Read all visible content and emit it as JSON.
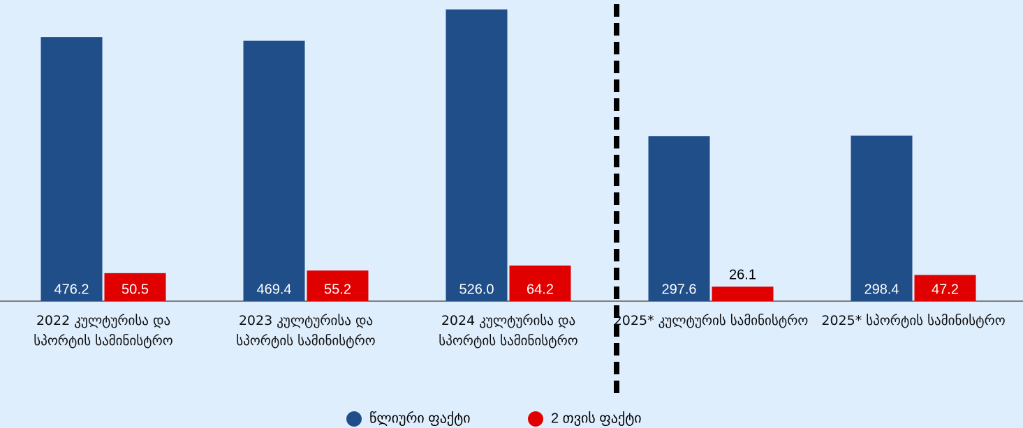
{
  "chart_data": {
    "type": "bar",
    "categories": [
      "2022 კულტურისა და სპორტის სამინისტრო",
      "2023 კულტურისა და სპორტის სამინისტრო",
      "2024 კულტურისა და სპორტის სამინისტრო",
      "2025* კულტურის სამინისტრო",
      "2025* სპორტის სამინისტრო"
    ],
    "series": [
      {
        "name": "წლიური ფაქტი",
        "color": "#1f4e89",
        "values": [
          476.2,
          469.4,
          526.0,
          297.6,
          298.4
        ],
        "value_labels": [
          "476.2",
          "469.4",
          "526.0",
          "297.6",
          "298.4"
        ]
      },
      {
        "name": "2 თვის ფაქტი",
        "color": "#e00000",
        "values": [
          50.5,
          55.2,
          64.2,
          26.1,
          47.2
        ],
        "value_labels": [
          "50.5",
          "55.2",
          "64.2",
          "26.1",
          "47.2"
        ]
      }
    ],
    "ylim": [
      0,
      543
    ]
  }
}
